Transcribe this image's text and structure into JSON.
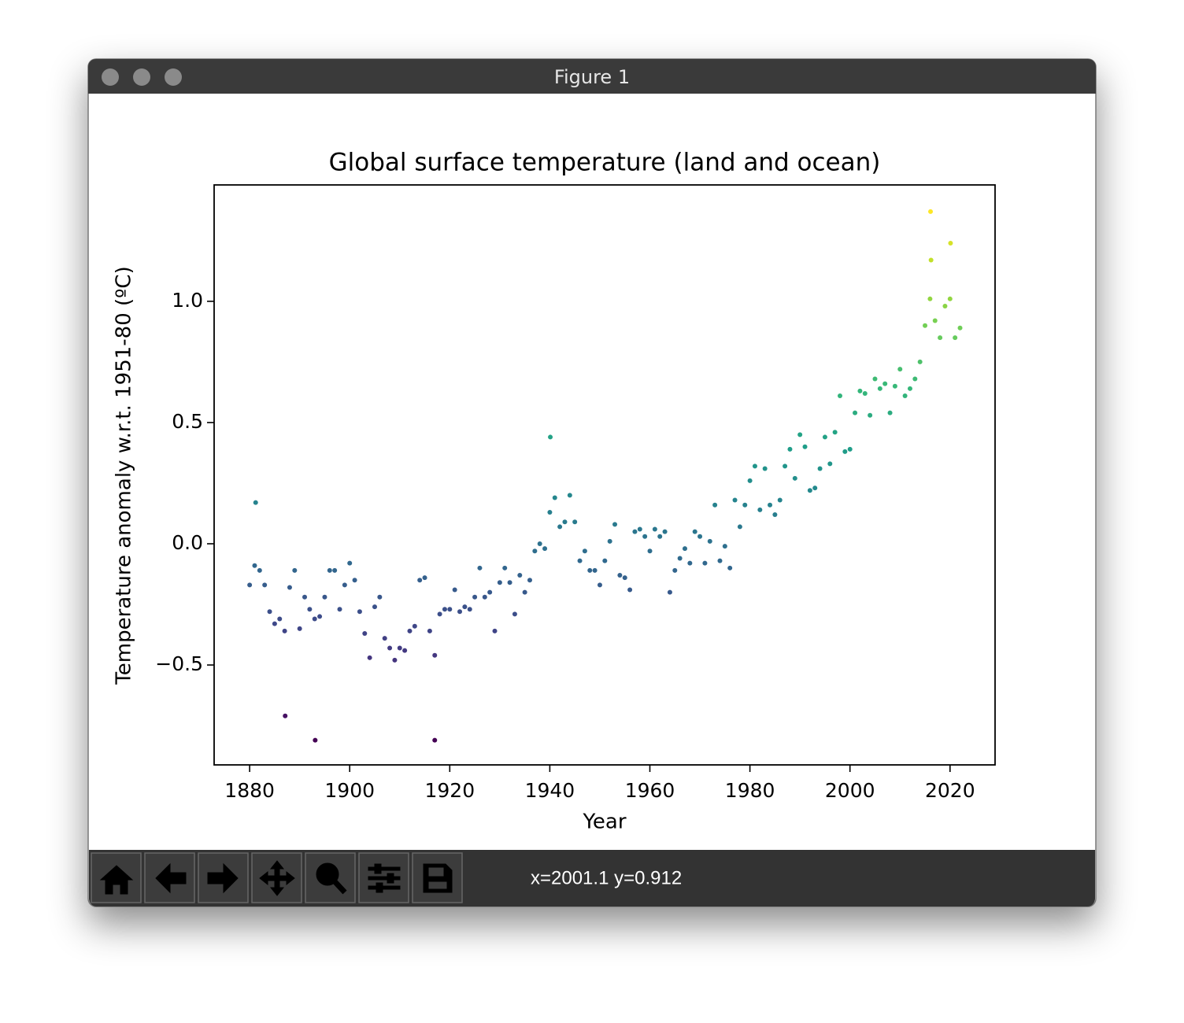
{
  "window": {
    "title": "Figure 1"
  },
  "chart_data": {
    "type": "scatter",
    "title": "Global surface temperature (land and ocean)",
    "x_label": "Year",
    "y_label": "Temperature anomaly w.r.t. 1951-80 (ºC)",
    "x": [
      1880,
      1881,
      1882,
      1883,
      1884,
      1885,
      1886,
      1887,
      1888,
      1889,
      1890,
      1891,
      1892,
      1893,
      1894,
      1895,
      1896,
      1897,
      1898,
      1899,
      1900,
      1901,
      1902,
      1903,
      1904,
      1905,
      1906,
      1907,
      1908,
      1909,
      1910,
      1911,
      1912,
      1913,
      1914,
      1915,
      1916,
      1917,
      1918,
      1919,
      1920,
      1921,
      1922,
      1923,
      1924,
      1925,
      1926,
      1927,
      1928,
      1929,
      1930,
      1931,
      1932,
      1933,
      1934,
      1935,
      1936,
      1937,
      1938,
      1939,
      1940,
      1941,
      1942,
      1943,
      1944,
      1945,
      1946,
      1947,
      1948,
      1949,
      1950,
      1951,
      1952,
      1953,
      1954,
      1955,
      1956,
      1957,
      1958,
      1959,
      1960,
      1961,
      1962,
      1963,
      1964,
      1965,
      1966,
      1967,
      1968,
      1969,
      1970,
      1971,
      1972,
      1973,
      1974,
      1975,
      1976,
      1977,
      1978,
      1979,
      1980,
      1981,
      1982,
      1983,
      1984,
      1985,
      1986,
      1987,
      1988,
      1989,
      1990,
      1991,
      1992,
      1993,
      1994,
      1995,
      1996,
      1997,
      1998,
      1999,
      2000,
      2001,
      2002,
      2003,
      2004,
      2005,
      2006,
      2007,
      2008,
      2009,
      2010,
      2011,
      2012,
      2013,
      2014,
      2015,
      2016,
      2017,
      2018,
      2019,
      2020,
      2021,
      2022,
      1887.1,
      1893.1,
      1917.0,
      2016.1,
      1881.2,
      1940.1,
      2016.2,
      2020.1
    ],
    "values": [
      -0.17,
      -0.09,
      -0.11,
      -0.17,
      -0.28,
      -0.33,
      -0.31,
      -0.36,
      -0.18,
      -0.11,
      -0.35,
      -0.22,
      -0.27,
      -0.31,
      -0.3,
      -0.22,
      -0.11,
      -0.11,
      -0.27,
      -0.17,
      -0.08,
      -0.15,
      -0.28,
      -0.37,
      -0.47,
      -0.26,
      -0.22,
      -0.39,
      -0.43,
      -0.48,
      -0.43,
      -0.44,
      -0.36,
      -0.34,
      -0.15,
      -0.14,
      -0.36,
      -0.46,
      -0.29,
      -0.27,
      -0.27,
      -0.19,
      -0.28,
      -0.26,
      -0.27,
      -0.22,
      -0.1,
      -0.22,
      -0.2,
      -0.36,
      -0.16,
      -0.1,
      -0.16,
      -0.29,
      -0.13,
      -0.2,
      -0.15,
      -0.03,
      0.0,
      -0.02,
      0.13,
      0.19,
      0.07,
      0.09,
      0.2,
      0.09,
      -0.07,
      -0.03,
      -0.11,
      -0.11,
      -0.17,
      -0.07,
      0.01,
      0.08,
      -0.13,
      -0.14,
      -0.19,
      0.05,
      0.06,
      0.03,
      -0.03,
      0.06,
      0.03,
      0.05,
      -0.2,
      -0.11,
      -0.06,
      -0.02,
      -0.08,
      0.05,
      0.03,
      -0.08,
      0.01,
      0.16,
      -0.07,
      -0.01,
      -0.1,
      0.18,
      0.07,
      0.16,
      0.26,
      0.32,
      0.14,
      0.31,
      0.16,
      0.12,
      0.18,
      0.32,
      0.39,
      0.27,
      0.45,
      0.4,
      0.22,
      0.23,
      0.31,
      0.44,
      0.33,
      0.46,
      0.61,
      0.38,
      0.39,
      0.54,
      0.63,
      0.62,
      0.53,
      0.68,
      0.64,
      0.66,
      0.54,
      0.65,
      0.72,
      0.61,
      0.64,
      0.68,
      0.75,
      0.9,
      1.01,
      0.92,
      0.85,
      0.98,
      1.01,
      0.85,
      0.89,
      -0.71,
      -0.81,
      -0.81,
      1.37,
      0.17,
      0.44,
      1.17,
      1.24
    ],
    "colormap": "viridis",
    "xlim": [
      1872.9,
      2029.0
    ],
    "xticks": [
      1880,
      1900,
      1920,
      1940,
      1960,
      1980,
      2000,
      2020
    ],
    "ylim": [
      -0.912,
      1.48
    ],
    "yticks": [
      {
        "value": -0.5,
        "label": "−0.5"
      },
      {
        "value": 0.0,
        "label": "0.0"
      },
      0.5,
      {
        "value": 1.0,
        "label": "1.0"
      }
    ]
  },
  "toolbar": {
    "status": "x=2001.1 y=0.912"
  }
}
